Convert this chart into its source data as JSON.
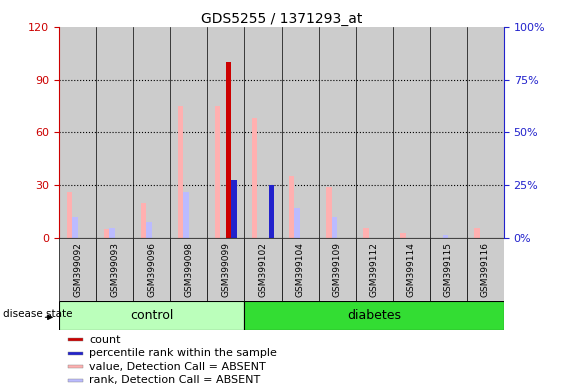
{
  "title": "GDS5255 / 1371293_at",
  "samples": [
    "GSM399092",
    "GSM399093",
    "GSM399096",
    "GSM399098",
    "GSM399099",
    "GSM399102",
    "GSM399104",
    "GSM399109",
    "GSM399112",
    "GSM399114",
    "GSM399115",
    "GSM399116"
  ],
  "control_count": 5,
  "diabetes_count": 7,
  "count": [
    0,
    0,
    0,
    0,
    100,
    0,
    0,
    0,
    0,
    0,
    0,
    0
  ],
  "percentile_rank": [
    0,
    0,
    0,
    0,
    33,
    30,
    0,
    0,
    0,
    0,
    0,
    0
  ],
  "value_absent": [
    26,
    5,
    20,
    75,
    75,
    68,
    35,
    29,
    6,
    3,
    0,
    6
  ],
  "rank_absent": [
    12,
    6,
    9,
    26,
    0,
    0,
    17,
    12,
    0,
    0,
    2,
    0
  ],
  "ylim_left": [
    0,
    120
  ],
  "yticks_left": [
    0,
    30,
    60,
    90,
    120
  ],
  "ytick_labels_right": [
    "0%",
    "25%",
    "50%",
    "75%",
    "100%"
  ],
  "bar_width": 0.15,
  "colors": {
    "count": "#CC0000",
    "percentile_rank": "#2222CC",
    "value_absent": "#FFB0B0",
    "rank_absent": "#BBBBFF",
    "control_bg": "#BBFFBB",
    "diabetes_bg": "#33DD33",
    "sample_bg": "#CCCCCC",
    "axis_left": "#CC0000",
    "axis_right": "#2222CC"
  },
  "legend": [
    {
      "label": "count",
      "color": "#CC0000"
    },
    {
      "label": "percentile rank within the sample",
      "color": "#2222CC"
    },
    {
      "label": "value, Detection Call = ABSENT",
      "color": "#FFB0B0"
    },
    {
      "label": "rank, Detection Call = ABSENT",
      "color": "#BBBBFF"
    }
  ]
}
